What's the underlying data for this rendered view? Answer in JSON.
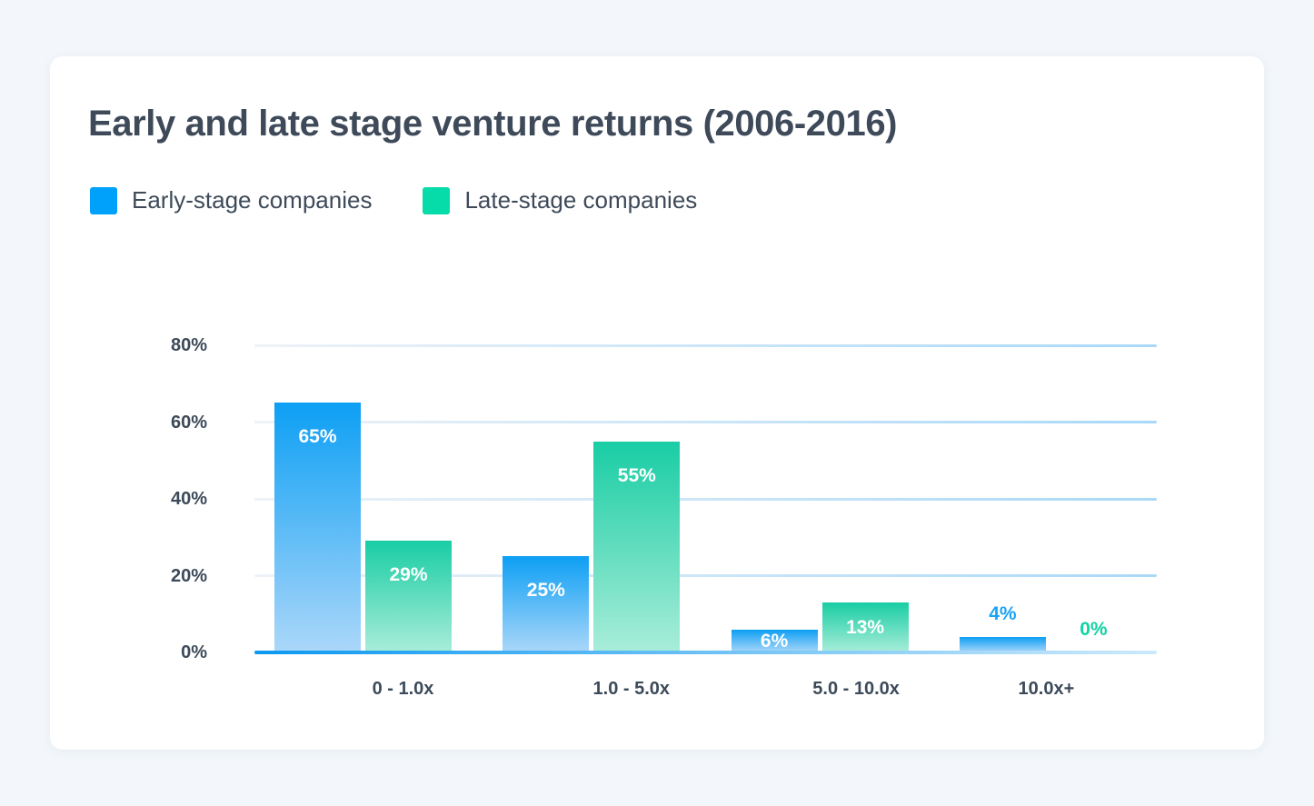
{
  "title": "Early and late stage venture returns (2006-2016)",
  "legend": {
    "items": [
      {
        "label": "Early-stage companies",
        "color": "#00a1fa"
      },
      {
        "label": "Late-stage companies",
        "color": "#06dca9"
      }
    ]
  },
  "chart_data": {
    "type": "bar",
    "title": "Early and late stage venture returns (2006-2016)",
    "categories": [
      "0 - 1.0x",
      "1.0 - 5.0x",
      "5.0 - 10.0x",
      "10.0x+"
    ],
    "series": [
      {
        "name": "Early-stage companies",
        "values": [
          65,
          25,
          6,
          4
        ],
        "labels": [
          "65%",
          "25%",
          "6%",
          "4%"
        ],
        "bar_top_color": "#0d9ff4",
        "bar_bottom_color": "#abd7f9",
        "outside_label_color": "#1aa3f5"
      },
      {
        "name": "Late-stage companies",
        "values": [
          29,
          55,
          13,
          0
        ],
        "labels": [
          "29%",
          "55%",
          "13%",
          "0%"
        ],
        "bar_top_color": "#19cda4",
        "bar_bottom_color": "#a9edd9",
        "outside_label_color": "#0fd3a3"
      }
    ],
    "y_ticks": [
      {
        "value": 80,
        "label": "80%"
      },
      {
        "value": 60,
        "label": "60%"
      },
      {
        "value": 40,
        "label": "40%"
      },
      {
        "value": 20,
        "label": "20%"
      },
      {
        "value": 0,
        "label": "0%"
      }
    ],
    "ylim": [
      0,
      80
    ],
    "xlabel": "",
    "ylabel": "",
    "grid": true,
    "legend_position": "top-left",
    "value_label_inside_color": "#ffffff",
    "gridline_gradient": [
      "#eef2f7",
      "#a9d9f8"
    ],
    "baseline_gradient": [
      "#0c99f0",
      "#cde9fb"
    ],
    "axis_label_color": "#3c4a59"
  }
}
